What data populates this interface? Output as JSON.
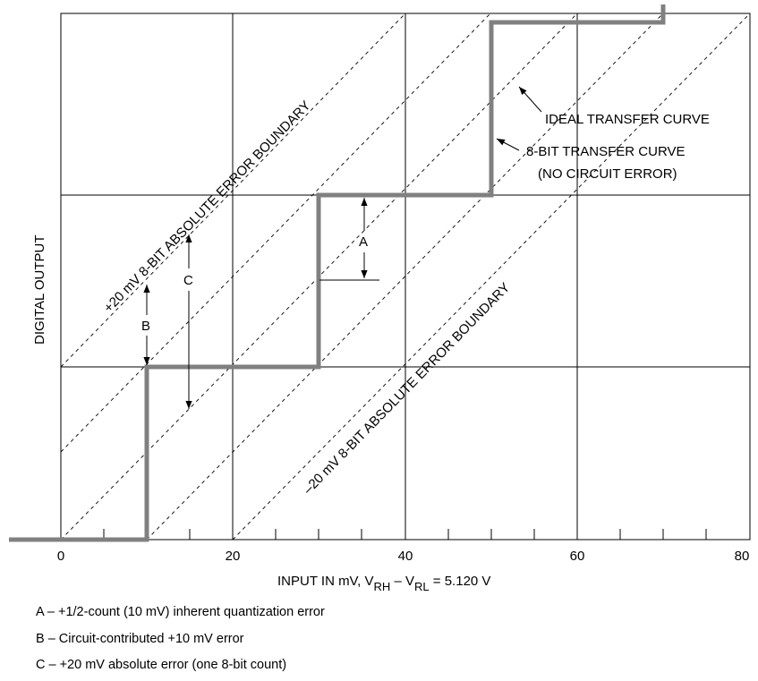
{
  "diagram": {
    "x_axis": {
      "label_prefix": "INPUT IN mV, V",
      "label_sub1": "RH",
      "label_mid": " – V",
      "label_sub2": "RL",
      "label_suffix": " = 5.120 V",
      "ticks": [
        "0",
        "20",
        "40",
        "60",
        "80"
      ]
    },
    "y_axis": {
      "label": "DIGITAL OUTPUT"
    },
    "annotations": {
      "ideal_curve": "IDEAL TRANSFER CURVE",
      "transfer_curve_line1": "8-BIT TRANSFER CURVE",
      "transfer_curve_line2": "(NO CIRCUIT ERROR)",
      "upper_boundary": "+20 mV 8-BIT ABSOLUTE ERROR BOUNDARY",
      "lower_boundary": "–20 mV 8-BIT ABSOLUTE ERROR BOUNDARY",
      "marker_a": "A",
      "marker_b": "B",
      "marker_c": "C"
    },
    "colors": {
      "transfer_curve": "#808080",
      "grid": "#000000"
    }
  },
  "legend": [
    {
      "text": "A  –  +1/2-count (10 mV) inherent quantization error"
    },
    {
      "text": "B  –  Circuit-contributed +10 mV error"
    },
    {
      "text": "C  –  +20 mV absolute error (one 8-bit count)"
    }
  ]
}
